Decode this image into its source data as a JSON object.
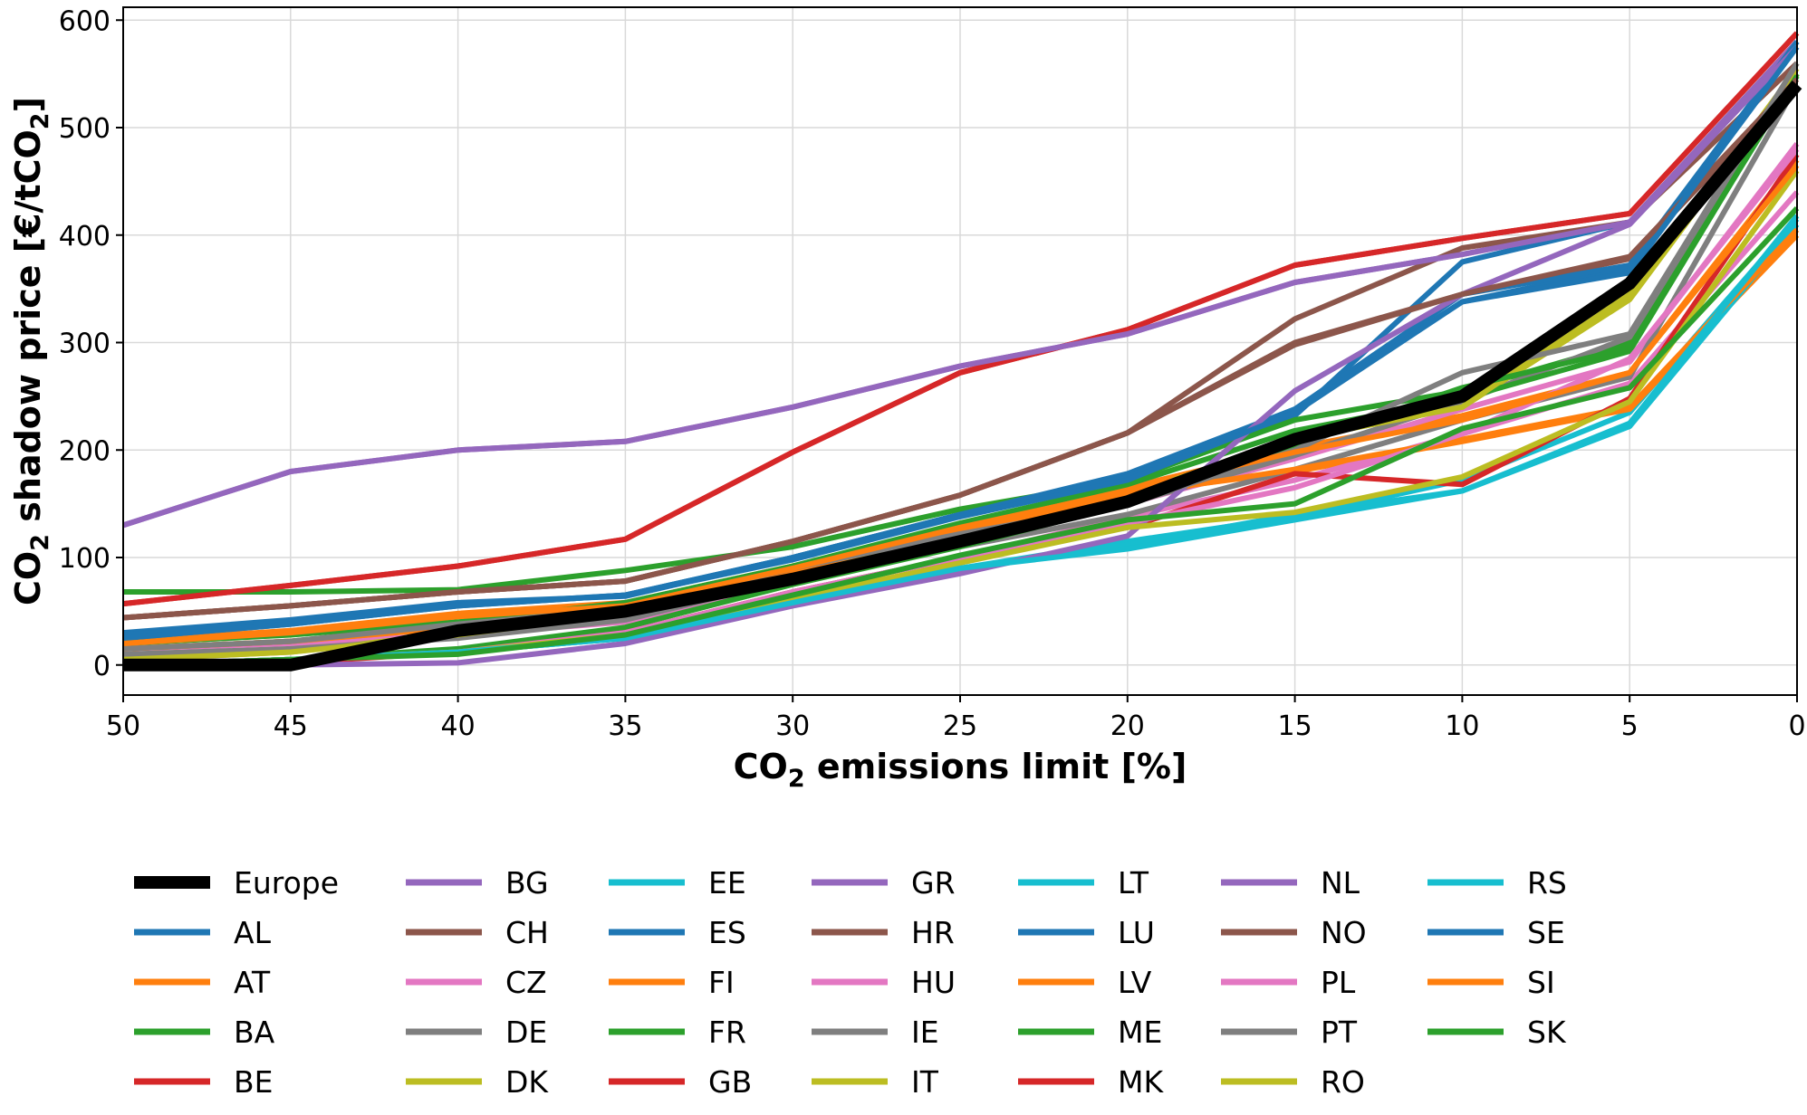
{
  "chart_data": {
    "type": "line",
    "title": "",
    "xlabel_main": "CO",
    "xlabel_sub": "2",
    "xlabel_rest": " emissions limit [%]",
    "ylabel_main": "CO",
    "ylabel_sub": "2",
    "ylabel_rest": " shadow price [€/tCO",
    "ylabel_sub2": "2",
    "ylabel_end": "]",
    "x": [
      50,
      45,
      40,
      35,
      30,
      25,
      20,
      15,
      10,
      5,
      0
    ],
    "x_ticks": [
      "50",
      "45",
      "40",
      "35",
      "30",
      "25",
      "20",
      "15",
      "10",
      "5",
      "0"
    ],
    "y_ticks": [
      "0",
      "100",
      "200",
      "300",
      "400",
      "500",
      "600"
    ],
    "xlim": [
      50,
      0
    ],
    "ylim": [
      -28,
      612
    ],
    "grid": true,
    "legend_position": "bottom",
    "series": [
      {
        "name": "AL",
        "color": "#1f77b4",
        "values": [
          30,
          42,
          58,
          64,
          100,
          140,
          175,
          232,
          375,
          412,
          580
        ]
      },
      {
        "name": "AT",
        "color": "#ff7f0e",
        "values": [
          22,
          32,
          48,
          58,
          92,
          130,
          165,
          202,
          232,
          272,
          470
        ]
      },
      {
        "name": "BA",
        "color": "#2ca02c",
        "values": [
          68,
          68,
          70,
          88,
          110,
          145,
          172,
          228,
          255,
          300,
          550
        ]
      },
      {
        "name": "BE",
        "color": "#d62728",
        "values": [
          57,
          74,
          92,
          117,
          198,
          272,
          312,
          372,
          397,
          420,
          588
        ]
      },
      {
        "name": "BG",
        "color": "#9467bd",
        "values": [
          130,
          180,
          200,
          208,
          240,
          278,
          308,
          356,
          382,
          412,
          580
        ]
      },
      {
        "name": "CH",
        "color": "#8c564b",
        "values": [
          44,
          55,
          68,
          78,
          115,
          158,
          216,
          322,
          388,
          412,
          560
        ]
      },
      {
        "name": "CZ",
        "color": "#e377c2",
        "values": [
          15,
          20,
          28,
          40,
          80,
          115,
          150,
          192,
          238,
          282,
          485
        ]
      },
      {
        "name": "DE",
        "color": "#7f7f7f",
        "values": [
          15,
          22,
          38,
          52,
          90,
          122,
          150,
          195,
          245,
          305,
          550
        ]
      },
      {
        "name": "DK",
        "color": "#bcbd22",
        "values": [
          5,
          12,
          30,
          48,
          85,
          120,
          158,
          210,
          240,
          340,
          550
        ]
      },
      {
        "name": "EE",
        "color": "#17becf",
        "values": [
          0,
          5,
          12,
          25,
          58,
          90,
          115,
          138,
          172,
          235,
          415
        ]
      },
      {
        "name": "ES",
        "color": "#1f77b4",
        "values": [
          25,
          38,
          55,
          65,
          100,
          140,
          178,
          238,
          338,
          370,
          580
        ]
      },
      {
        "name": "FI",
        "color": "#ff7f0e",
        "values": [
          15,
          22,
          35,
          50,
          88,
          125,
          160,
          180,
          208,
          238,
          400
        ]
      },
      {
        "name": "FR",
        "color": "#2ca02c",
        "values": [
          20,
          28,
          40,
          58,
          92,
          132,
          168,
          218,
          248,
          292,
          550
        ]
      },
      {
        "name": "GB",
        "color": "#d62728",
        "values": [
          57,
          74,
          92,
          117,
          198,
          272,
          312,
          372,
          397,
          420,
          588
        ]
      },
      {
        "name": "GR",
        "color": "#9467bd",
        "values": [
          130,
          180,
          200,
          208,
          240,
          278,
          308,
          356,
          382,
          412,
          580
        ]
      },
      {
        "name": "HR",
        "color": "#8c564b",
        "values": [
          44,
          55,
          68,
          78,
          115,
          158,
          216,
          298,
          345,
          378,
          540
        ]
      },
      {
        "name": "HU",
        "color": "#e377c2",
        "values": [
          0,
          5,
          12,
          30,
          68,
          100,
          138,
          172,
          215,
          262,
          440
        ]
      },
      {
        "name": "IE",
        "color": "#7f7f7f",
        "values": [
          10,
          15,
          25,
          42,
          80,
          110,
          140,
          182,
          228,
          268,
          540
        ]
      },
      {
        "name": "IT",
        "color": "#bcbd22",
        "values": [
          5,
          12,
          28,
          48,
          85,
          118,
          155,
          210,
          240,
          345,
          555
        ]
      },
      {
        "name": "LT",
        "color": "#17becf",
        "values": [
          0,
          5,
          12,
          25,
          58,
          90,
          112,
          140,
          162,
          222,
          410
        ]
      },
      {
        "name": "LU",
        "color": "#1f77b4",
        "values": [
          28,
          40,
          56,
          65,
          100,
          140,
          175,
          238,
          345,
          372,
          580
        ]
      },
      {
        "name": "LV",
        "color": "#ff7f0e",
        "values": [
          15,
          22,
          35,
          50,
          88,
          125,
          158,
          182,
          210,
          240,
          405
        ]
      },
      {
        "name": "ME",
        "color": "#2ca02c",
        "values": [
          0,
          5,
          15,
          35,
          75,
          110,
          150,
          205,
          258,
          295,
          548
        ]
      },
      {
        "name": "MK",
        "color": "#d62728",
        "values": [
          0,
          2,
          12,
          30,
          68,
          100,
          128,
          178,
          168,
          248,
          475
        ]
      },
      {
        "name": "NL",
        "color": "#9467bd",
        "values": [
          0,
          0,
          2,
          20,
          55,
          85,
          120,
          255,
          345,
          410,
          575
        ]
      },
      {
        "name": "NO",
        "color": "#8c564b",
        "values": [
          44,
          55,
          68,
          78,
          115,
          158,
          216,
          300,
          345,
          380,
          545
        ]
      },
      {
        "name": "PL",
        "color": "#e377c2",
        "values": [
          0,
          5,
          12,
          30,
          68,
          100,
          132,
          165,
          215,
          285,
          480
        ]
      },
      {
        "name": "PT",
        "color": "#7f7f7f",
        "values": [
          15,
          22,
          38,
          52,
          90,
          122,
          150,
          200,
          272,
          308,
          560
        ]
      },
      {
        "name": "RO",
        "color": "#bcbd22",
        "values": [
          0,
          5,
          12,
          28,
          62,
          95,
          128,
          142,
          175,
          245,
          460
        ]
      },
      {
        "name": "RS",
        "color": "#17becf",
        "values": [
          0,
          5,
          12,
          25,
          58,
          90,
          108,
          135,
          162,
          225,
          418
        ]
      },
      {
        "name": "SE",
        "color": "#1f77b4",
        "values": [
          25,
          38,
          55,
          65,
          98,
          138,
          172,
          235,
          338,
          365,
          575
        ]
      },
      {
        "name": "SI",
        "color": "#ff7f0e",
        "values": [
          20,
          30,
          45,
          55,
          90,
          128,
          162,
          198,
          228,
          272,
          465
        ]
      },
      {
        "name": "SK",
        "color": "#2ca02c",
        "values": [
          0,
          5,
          10,
          28,
          65,
          102,
          135,
          150,
          220,
          258,
          425
        ]
      },
      {
        "name": "Europe",
        "color": "#000000",
        "values": [
          0,
          0,
          32,
          50,
          80,
          115,
          152,
          210,
          250,
          355,
          540
        ],
        "emphasis": true
      }
    ],
    "legend_order": [
      "Europe",
      "AL",
      "AT",
      "BA",
      "BE",
      "BG",
      "CH",
      "CZ",
      "DE",
      "DK",
      "EE",
      "ES",
      "FI",
      "FR",
      "GB",
      "GR",
      "HR",
      "HU",
      "IE",
      "IT",
      "LT",
      "LU",
      "LV",
      "ME",
      "MK",
      "NL",
      "NO",
      "PL",
      "PT",
      "RO",
      "RS",
      "SE",
      "SI",
      "SK"
    ]
  }
}
